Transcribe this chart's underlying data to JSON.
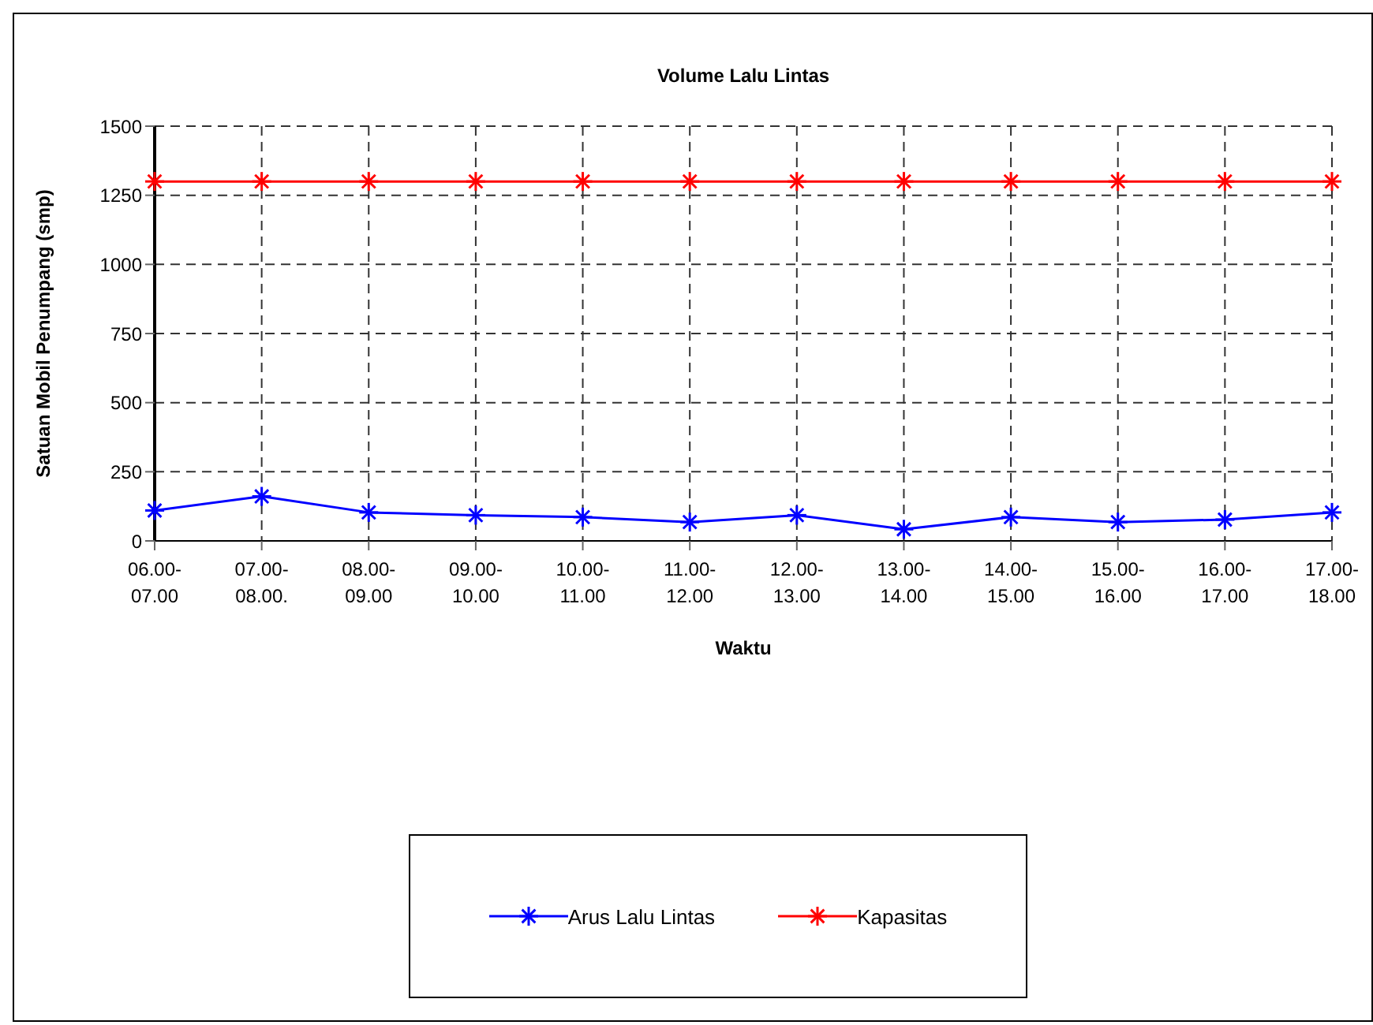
{
  "chart_data": {
    "type": "line",
    "title": "Volume Lalu Lintas",
    "xlabel": "Waktu",
    "ylabel": "Satuan Mobil Penumpang (smp)",
    "categories": [
      "06.00-07.00",
      "07.00-08.00.",
      "08.00-09.00",
      "09.00-10.00",
      "10.00-11.00",
      "11.00-12.00",
      "12.00-13.00",
      "13.00-14.00",
      "14.00-15.00",
      "15.00-16.00",
      "16.00-17.00",
      "17.00-18.00"
    ],
    "series": [
      {
        "name": "Arus Lalu Lintas",
        "color": "#0000ff",
        "marker": "cross",
        "values": [
          110,
          161,
          103,
          93,
          86,
          68,
          93,
          42,
          86,
          68,
          77,
          103
        ]
      },
      {
        "name": "Kapasitas",
        "color": "#ff0000",
        "marker": "cross",
        "values": [
          1300,
          1300,
          1300,
          1300,
          1300,
          1300,
          1300,
          1300,
          1300,
          1300,
          1300,
          1300
        ]
      }
    ],
    "ylim": [
      0,
      1500
    ],
    "yticks": [
      0,
      250,
      500,
      750,
      1000,
      1250,
      1500
    ],
    "grid": true,
    "legend": "bottom",
    "line_style": "solid"
  }
}
